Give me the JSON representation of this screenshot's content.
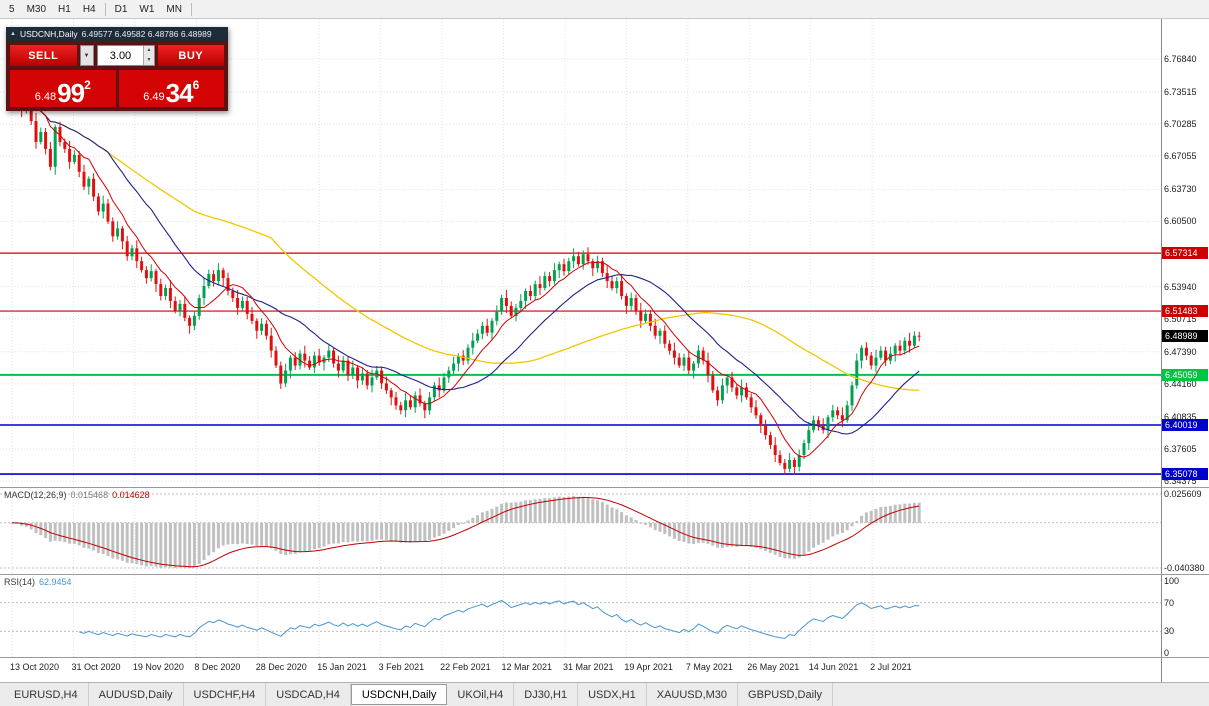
{
  "toolbar": {
    "groups": [
      [
        "5",
        "M30",
        "H1",
        "H4"
      ],
      [
        "D1",
        "W1",
        "MN"
      ]
    ]
  },
  "icons": {
    "collapse": "▲",
    "dropdown": "▼",
    "up": "▲",
    "down": "▼"
  },
  "panel": {
    "title": "USDCNH,Daily",
    "ohlc": "6.49577 6.49582 6.48786 6.48989",
    "sell_label": "SELL",
    "buy_label": "BUY",
    "volume": "3.00",
    "sell_price": {
      "prefix": "6.48",
      "big": "99",
      "sup": "2"
    },
    "buy_price": {
      "prefix": "6.49",
      "big": "34",
      "sup": "6"
    }
  },
  "colors": {
    "up": "#00a150",
    "down": "#e01010",
    "ma_fast": "#d40000",
    "ma_mid": "#20208c",
    "ma_slow": "#f0c800",
    "grid": "#e2e2e2",
    "level_dash": "#bdbdbd",
    "hist": "#c0c0c0",
    "signal": "#c00000",
    "rsi": "#4696d2",
    "badge_current": "#000000"
  },
  "chart_data": {
    "type": "candlestick",
    "symbol": "USDCNH",
    "timeframe": "Daily",
    "price_axis_labels": [
      "6.76840",
      "6.73515",
      "6.70285",
      "6.67055",
      "6.63730",
      "6.60500",
      "6.53940",
      "6.50715",
      "6.47390",
      "6.44160",
      "6.40835",
      "6.37605",
      "6.34375"
    ],
    "hlines": [
      {
        "price": 6.57314,
        "color": "#cc0000",
        "label": "6.57314",
        "width": 1.2
      },
      {
        "price": 6.51483,
        "color": "#cc0000",
        "label": "6.51483",
        "width": 1.2
      },
      {
        "price": 6.45059,
        "color": "#00c444",
        "label": "6.45059",
        "width": 2
      },
      {
        "price": 6.40019,
        "color": "#0000cc",
        "label": "6.40019",
        "width": 1.6
      },
      {
        "price": 6.35078,
        "color": "#0000cc",
        "label": "6.35078",
        "width": 1.6
      }
    ],
    "current_price": {
      "label": "6.48989",
      "price": 6.48989
    },
    "first_open": 6.74,
    "wick_pattern": [
      0.004,
      0.007,
      0.0025,
      0.0055,
      0.0035,
      0.008,
      0.0045
    ],
    "closes": [
      6.745,
      6.738,
      6.718,
      6.725,
      6.706,
      6.685,
      6.695,
      6.678,
      6.66,
      6.7,
      6.685,
      6.678,
      6.665,
      6.672,
      6.655,
      6.64,
      6.648,
      6.63,
      6.615,
      6.623,
      6.605,
      6.59,
      6.598,
      6.585,
      6.57,
      6.578,
      6.565,
      6.556,
      6.548,
      6.555,
      6.542,
      6.53,
      6.538,
      6.525,
      6.515,
      6.522,
      6.508,
      6.5,
      6.51,
      6.528,
      6.54,
      6.552,
      6.545,
      6.556,
      6.548,
      6.535,
      6.528,
      6.518,
      6.525,
      6.512,
      6.505,
      6.495,
      6.502,
      6.49,
      6.475,
      6.46,
      6.442,
      6.455,
      6.468,
      6.46,
      6.472,
      6.465,
      6.458,
      6.47,
      6.463,
      6.468,
      6.475,
      6.462,
      6.455,
      6.465,
      6.45,
      6.458,
      6.445,
      6.452,
      6.44,
      6.448,
      6.455,
      6.442,
      6.435,
      6.428,
      6.42,
      6.415,
      6.425,
      6.418,
      6.43,
      6.422,
      6.415,
      6.428,
      6.44,
      6.435,
      6.448,
      6.455,
      6.462,
      6.47,
      6.465,
      6.478,
      6.485,
      6.492,
      6.5,
      6.493,
      6.505,
      6.515,
      6.528,
      6.52,
      6.51,
      6.518,
      6.525,
      6.535,
      6.53,
      6.542,
      6.538,
      6.55,
      6.545,
      6.556,
      6.562,
      6.555,
      6.565,
      6.57,
      6.562,
      6.572,
      6.565,
      6.558,
      6.565,
      6.553,
      6.545,
      6.538,
      6.545,
      6.53,
      6.52,
      6.528,
      6.515,
      6.505,
      6.512,
      6.5,
      6.49,
      6.495,
      6.482,
      6.475,
      6.468,
      6.46,
      6.468,
      6.455,
      6.462,
      6.475,
      6.465,
      6.45,
      6.435,
      6.425,
      6.44,
      6.448,
      6.438,
      6.43,
      6.438,
      6.428,
      6.418,
      6.41,
      6.4,
      6.39,
      6.38,
      6.37,
      6.362,
      6.356,
      6.365,
      6.358,
      6.37,
      6.382,
      6.395,
      6.405,
      6.4,
      6.395,
      6.408,
      6.415,
      6.41,
      6.405,
      6.42,
      6.44,
      6.465,
      6.478,
      6.47,
      6.46,
      6.468,
      6.475,
      6.465,
      6.472,
      6.48,
      6.475,
      6.485,
      6.48,
      6.49,
      6.48989
    ],
    "date_labels": [
      "13 Oct 2020",
      "31 Oct 2020",
      "19 Nov 2020",
      "8 Dec 2020",
      "28 Dec 2020",
      "15 Jan 2021",
      "3 Feb 2021",
      "22 Feb 2021",
      "12 Mar 2021",
      "31 Mar 2021",
      "19 Apr 2021",
      "7 May 2021",
      "26 May 2021",
      "14 Jun 2021",
      "2 Jul 2021"
    ],
    "macd": {
      "label": "MACD(12,26,9)",
      "value_main": "0.015468",
      "value_signal": "0.014628",
      "params": [
        12,
        26,
        9
      ],
      "axis": [
        "0.025609",
        "-0.040380"
      ]
    },
    "rsi": {
      "label": "RSI(14)",
      "value": "62.9454",
      "period": 14,
      "axis": [
        "100",
        "70",
        "30",
        "0"
      ],
      "levels": [
        70,
        30
      ]
    }
  },
  "tabs": [
    {
      "label": "EURUSD,H4",
      "active": false
    },
    {
      "label": "AUDUSD,Daily",
      "active": false
    },
    {
      "label": "USDCHF,H4",
      "active": false
    },
    {
      "label": "USDCAD,H4",
      "active": false
    },
    {
      "label": "USDCNH,Daily",
      "active": true
    },
    {
      "label": "UKOil,H4",
      "active": false
    },
    {
      "label": "DJ30,H1",
      "active": false
    },
    {
      "label": "USDX,H1",
      "active": false
    },
    {
      "label": "XAUUSD,M30",
      "active": false
    },
    {
      "label": "GBPUSD,Daily",
      "active": false
    }
  ]
}
